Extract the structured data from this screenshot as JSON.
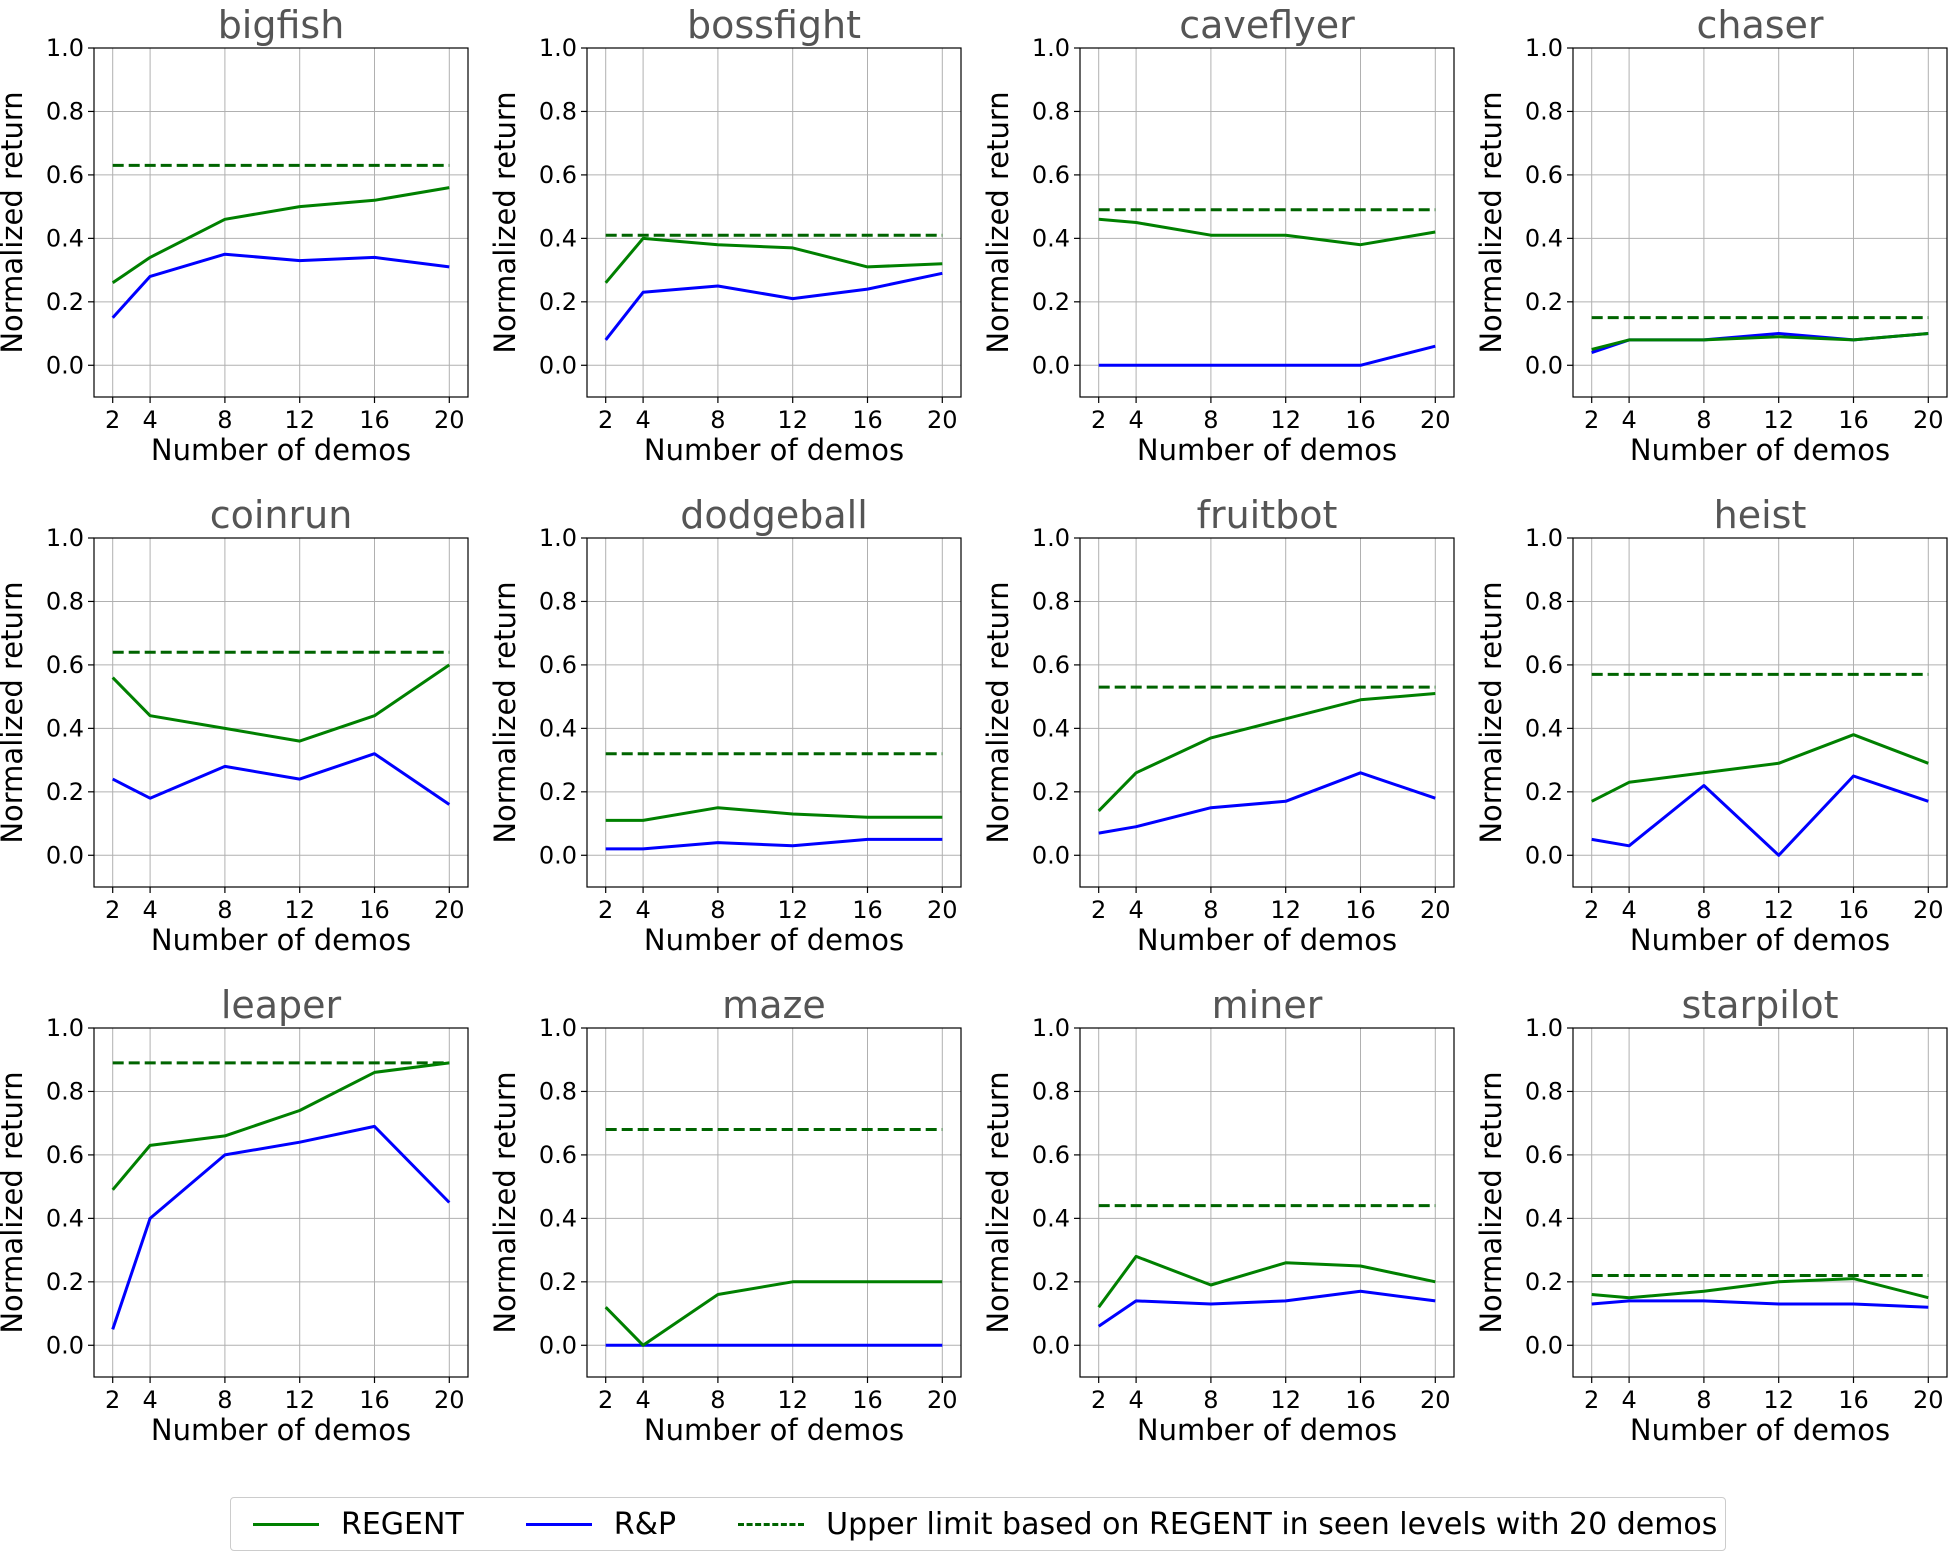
{
  "chart_data": {
    "type": "line",
    "x": [
      2,
      4,
      8,
      12,
      16,
      20
    ],
    "xlabel": "Number of demos",
    "ylabel": "Normalized return",
    "ylim": [
      -0.1,
      1.0
    ],
    "yticks": [
      "0.0",
      "0.2",
      "0.4",
      "0.6",
      "0.8",
      "1.0"
    ],
    "xticks": [
      "2",
      "4",
      "8",
      "12",
      "16",
      "20"
    ],
    "grid": true,
    "legend_position": "bottom-center",
    "colors": {
      "regent": "#008000",
      "rp": "#0000ff",
      "upper": "#006400",
      "title": "#555555",
      "grid": "#b0b0b0"
    },
    "legend": [
      {
        "label": "REGENT",
        "style": "solid",
        "color": "#008000"
      },
      {
        "label": "R&P",
        "style": "solid",
        "color": "#0000ff"
      },
      {
        "label": "Upper limit based on REGENT in seen levels with 20 demos",
        "style": "dashed",
        "color": "#006400"
      }
    ],
    "panels": [
      {
        "title": "bigfish",
        "regent": [
          0.26,
          0.34,
          0.46,
          0.5,
          0.52,
          0.56
        ],
        "rp": [
          0.15,
          0.28,
          0.35,
          0.33,
          0.34,
          0.31
        ],
        "upper": 0.63
      },
      {
        "title": "bossfight",
        "regent": [
          0.26,
          0.4,
          0.38,
          0.37,
          0.31,
          0.32
        ],
        "rp": [
          0.08,
          0.23,
          0.25,
          0.21,
          0.24,
          0.29
        ],
        "upper": 0.41
      },
      {
        "title": "caveflyer",
        "regent": [
          0.46,
          0.45,
          0.41,
          0.41,
          0.38,
          0.42
        ],
        "rp": [
          0.0,
          0.0,
          0.0,
          0.0,
          0.0,
          0.06
        ],
        "upper": 0.49
      },
      {
        "title": "chaser",
        "regent": [
          0.05,
          0.08,
          0.08,
          0.09,
          0.08,
          0.1
        ],
        "rp": [
          0.04,
          0.08,
          0.08,
          0.1,
          0.08,
          0.1
        ],
        "upper": 0.15
      },
      {
        "title": "coinrun",
        "regent": [
          0.56,
          0.44,
          0.4,
          0.36,
          0.44,
          0.6
        ],
        "rp": [
          0.24,
          0.18,
          0.28,
          0.24,
          0.32,
          0.16
        ],
        "upper": 0.64
      },
      {
        "title": "dodgeball",
        "regent": [
          0.11,
          0.11,
          0.15,
          0.13,
          0.12,
          0.12
        ],
        "rp": [
          0.02,
          0.02,
          0.04,
          0.03,
          0.05,
          0.05
        ],
        "upper": 0.32
      },
      {
        "title": "fruitbot",
        "regent": [
          0.14,
          0.26,
          0.37,
          0.43,
          0.49,
          0.51
        ],
        "rp": [
          0.07,
          0.09,
          0.15,
          0.17,
          0.26,
          0.18
        ],
        "upper": 0.53
      },
      {
        "title": "heist",
        "regent": [
          0.17,
          0.23,
          0.26,
          0.29,
          0.38,
          0.29
        ],
        "rp": [
          0.05,
          0.03,
          0.22,
          0.0,
          0.25,
          0.17
        ],
        "upper": 0.57
      },
      {
        "title": "leaper",
        "regent": [
          0.49,
          0.63,
          0.66,
          0.74,
          0.86,
          0.89
        ],
        "rp": [
          0.05,
          0.4,
          0.6,
          0.64,
          0.69,
          0.45
        ],
        "upper": 0.89
      },
      {
        "title": "maze",
        "regent": [
          0.12,
          0.0,
          0.16,
          0.2,
          0.2,
          0.2
        ],
        "rp": [
          0.0,
          0.0,
          0.0,
          0.0,
          0.0,
          0.0
        ],
        "upper": 0.68
      },
      {
        "title": "miner",
        "regent": [
          0.12,
          0.28,
          0.19,
          0.26,
          0.25,
          0.2
        ],
        "rp": [
          0.06,
          0.14,
          0.13,
          0.14,
          0.17,
          0.14
        ],
        "upper": 0.44
      },
      {
        "title": "starpilot",
        "regent": [
          0.16,
          0.15,
          0.17,
          0.2,
          0.21,
          0.15
        ],
        "rp": [
          0.13,
          0.14,
          0.14,
          0.13,
          0.13,
          0.12
        ],
        "upper": 0.22
      }
    ]
  }
}
